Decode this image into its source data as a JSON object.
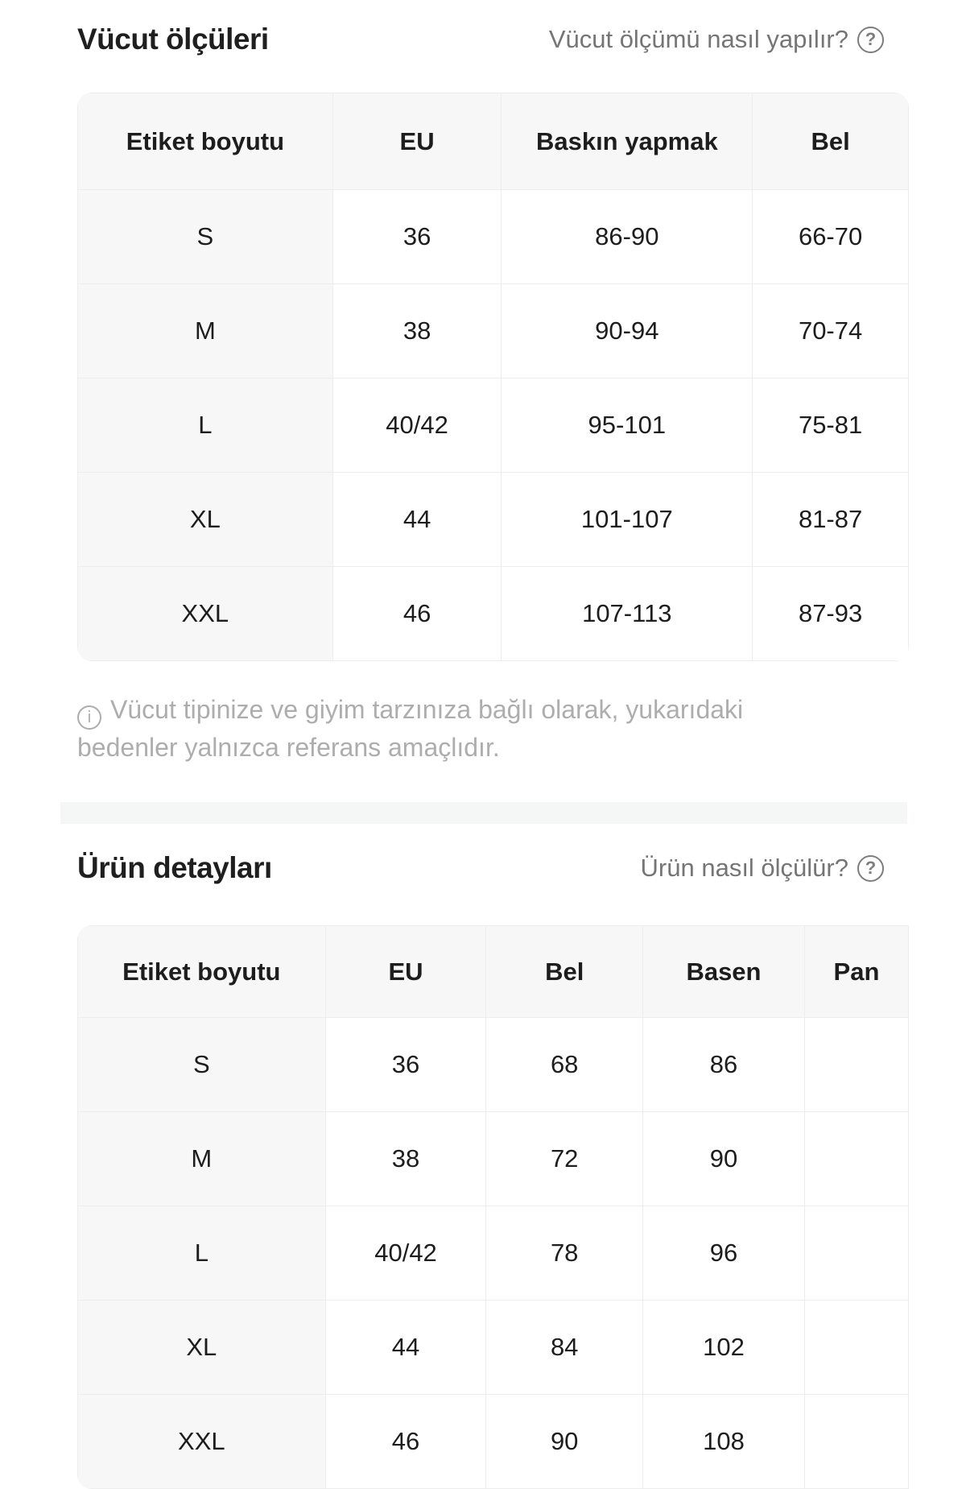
{
  "colors": {
    "text": "#1d1d1d",
    "link_gray": "#757575",
    "note_gray": "#adadad",
    "table_header_bg": "#f7f7f7",
    "table_border": "#ededed",
    "divider": "#f5f6f6"
  },
  "body_section": {
    "title": "Vücut ölçüleri",
    "help_label": "Vücut ölçümü nasıl yapılır?",
    "help_icon_glyph": "?",
    "note_icon_glyph": "i",
    "note": "Vücut tipinize ve giyim tarzınıza bağlı olarak, yukarıdaki bedenler yalnızca referans amaçlıdır.",
    "table": {
      "headers": [
        "Etiket boyutu",
        "EU",
        "Baskın yapmak",
        "Bel"
      ],
      "rows": [
        [
          "S",
          "36",
          "86-90",
          "66-70"
        ],
        [
          "M",
          "38",
          "90-94",
          "70-74"
        ],
        [
          "L",
          "40/42",
          "95-101",
          "75-81"
        ],
        [
          "XL",
          "44",
          "101-107",
          "81-87"
        ],
        [
          "XXL",
          "46",
          "107-113",
          "87-93"
        ]
      ]
    }
  },
  "product_section": {
    "title": "Ürün detayları",
    "help_label": "Ürün nasıl ölçülür?",
    "help_icon_glyph": "?",
    "table": {
      "headers": [
        "Etiket boyutu",
        "EU",
        "Bel",
        "Basen",
        "Pan"
      ],
      "rows": [
        [
          "S",
          "36",
          "68",
          "86",
          ""
        ],
        [
          "M",
          "38",
          "72",
          "90",
          ""
        ],
        [
          "L",
          "40/42",
          "78",
          "96",
          ""
        ],
        [
          "XL",
          "44",
          "84",
          "102",
          ""
        ],
        [
          "XXL",
          "46",
          "90",
          "108",
          ""
        ]
      ]
    }
  }
}
